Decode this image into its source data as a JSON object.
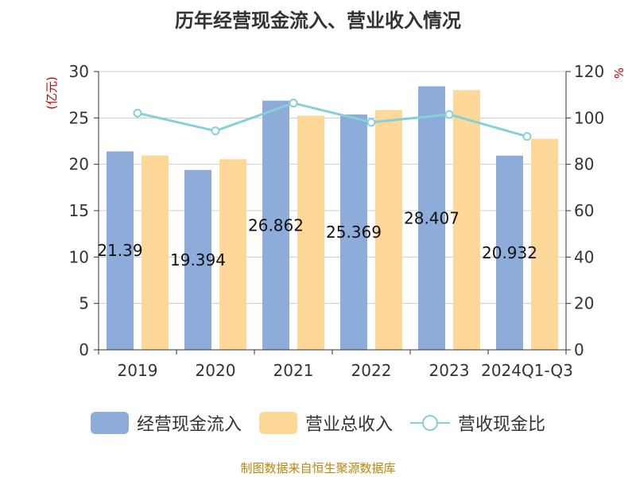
{
  "chart_data": {
    "type": "bar",
    "title": "历年经营现金流入、营业收入情况",
    "categories": [
      "2019",
      "2020",
      "2021",
      "2022",
      "2023",
      "2024Q1-Q3"
    ],
    "y_left": {
      "label": "(亿元)",
      "ylim": [
        0,
        30
      ],
      "ticks": [
        0,
        5,
        10,
        15,
        20,
        25,
        30
      ]
    },
    "y_right": {
      "label": "%",
      "ylim": [
        0,
        120
      ],
      "ticks": [
        0,
        20,
        40,
        60,
        80,
        100,
        120
      ]
    },
    "series": [
      {
        "name": "经营现金流入",
        "type": "bar",
        "axis": "left",
        "color": "#8eacd9",
        "values": [
          21.39,
          19.394,
          26.862,
          25.369,
          28.407,
          20.932
        ],
        "data_labels": [
          "21.39",
          "19.394",
          "26.862",
          "25.369",
          "28.407",
          "20.932"
        ]
      },
      {
        "name": "营业总收入",
        "type": "bar",
        "axis": "left",
        "color": "#fdd898",
        "values": [
          20.95,
          20.55,
          25.25,
          25.85,
          28.0,
          22.75
        ]
      },
      {
        "name": "营收现金比",
        "type": "line",
        "axis": "right",
        "color": "#86d0d8",
        "values": [
          102.1,
          94.4,
          106.4,
          98.1,
          101.5,
          92.0
        ]
      }
    ],
    "grid": true,
    "legend_position": "bottom"
  },
  "source_text": "制图数据来自恒生聚源数据库"
}
